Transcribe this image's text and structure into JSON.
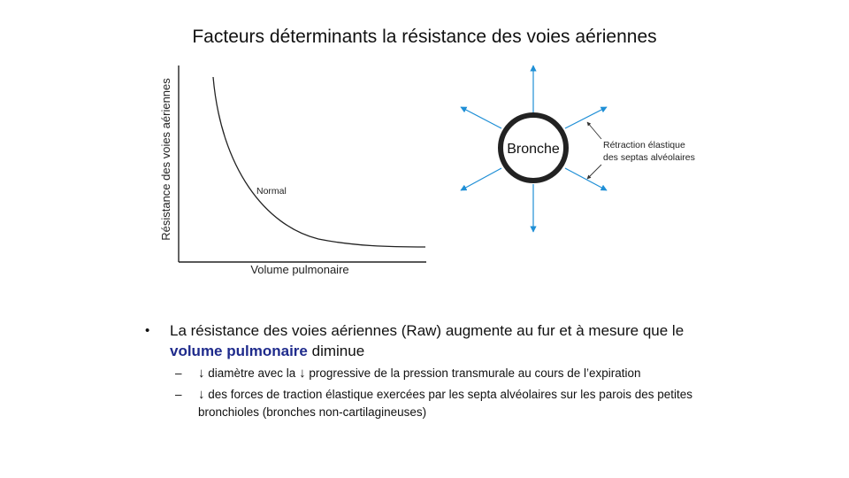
{
  "title": "Facteurs déterminants la résistance des voies aériennes",
  "graph": {
    "ylabel": "Résistance des voies aériennes",
    "xlabel": "Volume pulmonaire",
    "curve_label": "Normal"
  },
  "diagram": {
    "center_label": "Bronche",
    "annotation_line1": "Rétraction élastique",
    "annotation_line2": "des septas alvéolaires"
  },
  "bullets": {
    "main_part1": "La résistance des voies aériennes (Raw) augmente au fur et à mesure que le",
    "main_highlight": "volume pulmonaire",
    "main_part2": "diminue",
    "sub1_arrow": "↓",
    "sub1_a": "diamètre avec la",
    "sub1_arrow2": "↓",
    "sub1_b": "progressive de la pression transmurale au cours de l’expiration",
    "sub2_arrow": "↓",
    "sub2_text": "des forces de traction élastique exercées par les septa alvéolaires sur les parois des petites bronchioles (bronches non-cartilagineuses)"
  },
  "colors": {
    "arrow_blue": "#1f8fd6",
    "highlight": "#1f2b8c"
  }
}
